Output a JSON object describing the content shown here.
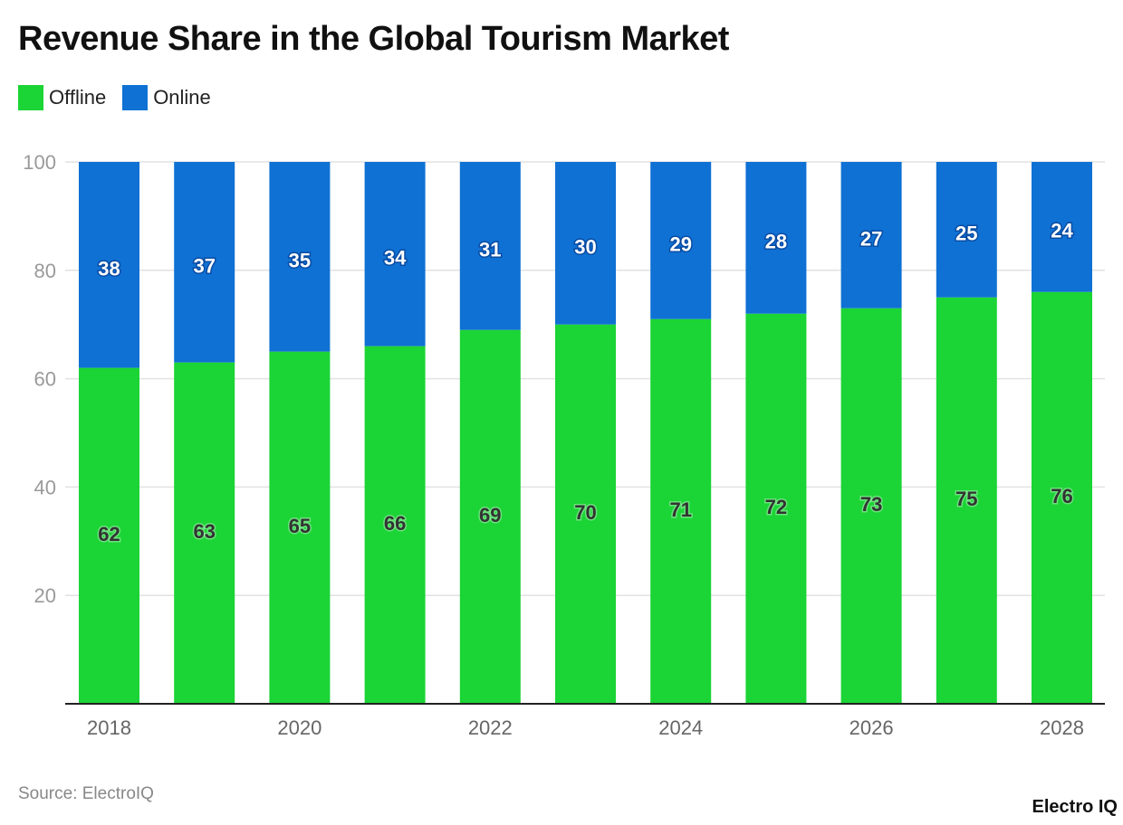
{
  "chart_data": {
    "type": "bar",
    "stacked": true,
    "title": "Revenue Share in the Global Tourism Market",
    "categories": [
      "2018",
      "2019",
      "2020",
      "2021",
      "2022",
      "2023",
      "2024",
      "2025",
      "2026",
      "2027",
      "2028"
    ],
    "x_tick_labels": [
      "2018",
      "2020",
      "2022",
      "2024",
      "2026",
      "2028"
    ],
    "series": [
      {
        "name": "Offline",
        "color": "#1bd435",
        "label_color": "#333333",
        "values": [
          62,
          63,
          65,
          66,
          69,
          70,
          71,
          72,
          73,
          75,
          76
        ]
      },
      {
        "name": "Online",
        "color": "#0f71d3",
        "label_color": "#ffffff",
        "values": [
          38,
          37,
          35,
          34,
          31,
          30,
          29,
          28,
          27,
          25,
          24
        ]
      }
    ],
    "ylim": [
      0,
      100
    ],
    "y_ticks": [
      20,
      40,
      60,
      80,
      100
    ],
    "grid": true,
    "legend_position": "top-left",
    "xlabel": "",
    "ylabel": ""
  },
  "source": "Source: ElectroIQ",
  "logo": "Electro IQ"
}
